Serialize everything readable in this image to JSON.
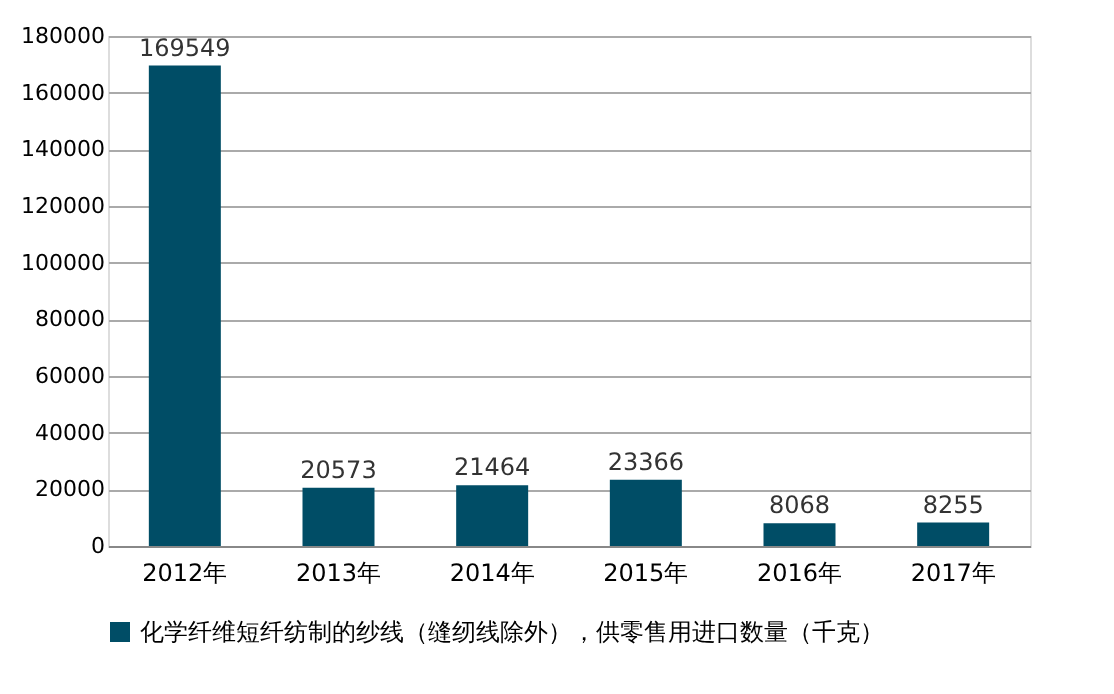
{
  "chart_data": {
    "type": "bar",
    "categories": [
      "2012年",
      "2013年",
      "2014年",
      "2015年",
      "2016年",
      "2017年"
    ],
    "series": [
      {
        "name": "化学纤维短纤纺制的纱线（缝纫线除外），供零售用进口数量（千克）",
        "color": "#004d66",
        "values": [
          169549,
          20573,
          21464,
          23366,
          8068,
          8255
        ]
      }
    ],
    "ylim": [
      0,
      180000
    ],
    "yticks": [
      0,
      20000,
      40000,
      60000,
      80000,
      100000,
      120000,
      140000,
      160000,
      180000
    ],
    "grid": "y",
    "legend": "bottom",
    "data_labels": true
  }
}
